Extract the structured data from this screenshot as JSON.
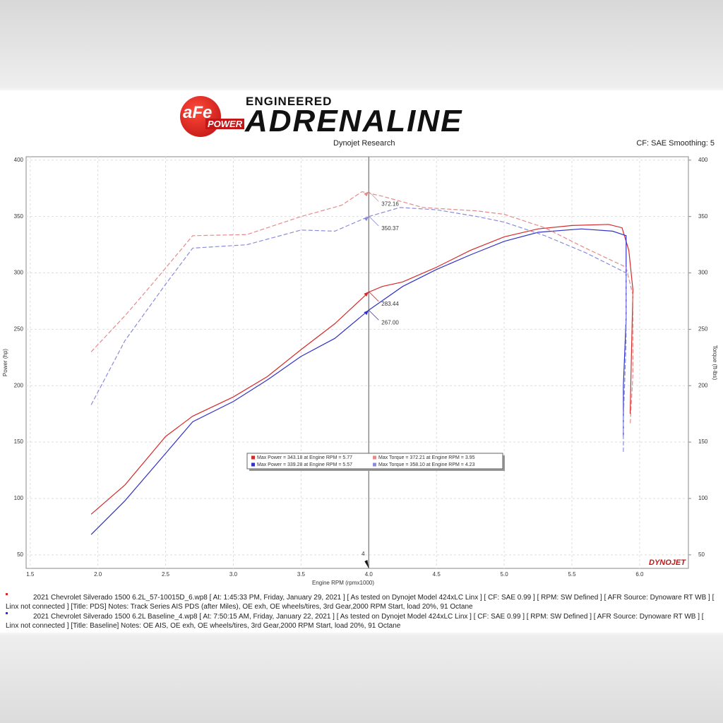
{
  "header": {
    "brand": "aFe",
    "brand_sub": "POWER",
    "line1": "ENGINEERED",
    "line2": "ADRENALINE",
    "left": "Dynojet Research",
    "right": "CF: SAE Smoothing: 5"
  },
  "chart_data": {
    "type": "line",
    "xlabel": "Engine RPM (rpmx1000)",
    "ylabel": "Power (hp)",
    "y2label": "Torque (ft-lbs)",
    "xlim": [
      1.47,
      6.36
    ],
    "xticks": [
      1.5,
      {
        "value": 2,
        "label": "2.0"
      },
      2.5,
      {
        "value": 3,
        "label": "3.0"
      },
      3.5,
      {
        "value": 4,
        "label": "4.0"
      },
      4.5,
      {
        "value": 5,
        "label": "5.0"
      },
      5.5,
      {
        "value": 6,
        "label": "6.0"
      }
    ],
    "ylim": [
      38,
      403
    ],
    "yticks": [
      50,
      100,
      150,
      200,
      250,
      300,
      350,
      400
    ],
    "y2lim": [
      38,
      403
    ],
    "y2ticks": [
      50,
      100,
      150,
      200,
      250,
      300,
      350,
      400
    ],
    "grid": true,
    "series": [
      {
        "color": "#d42a2a",
        "dashed": false,
        "x": [
          1.95,
          2.2,
          2.5,
          2.7,
          3.0,
          3.25,
          3.5,
          3.75,
          4.0,
          4.1,
          4.25,
          4.5,
          4.75,
          5.0,
          5.25,
          5.5,
          5.77,
          5.87,
          5.92,
          5.95,
          5.94,
          5.93
        ],
        "values": [
          86,
          112,
          155,
          173,
          190,
          208,
          232,
          255,
          283,
          288,
          292,
          305,
          320,
          332,
          339,
          342,
          343,
          340,
          320,
          285,
          230,
          175
        ]
      },
      {
        "color": "#3232c8",
        "dashed": false,
        "x": [
          1.95,
          2.2,
          2.5,
          2.7,
          3.0,
          3.25,
          3.5,
          3.75,
          4.0,
          4.25,
          4.5,
          4.75,
          5.0,
          5.25,
          5.57,
          5.8,
          5.9,
          5.9,
          5.88,
          5.88
        ],
        "values": [
          68,
          98,
          140,
          168,
          186,
          205,
          226,
          242,
          267,
          288,
          303,
          316,
          328,
          336,
          339,
          337,
          333,
          260,
          200,
          155
        ]
      },
      {
        "color": "#e68a8a",
        "dashed": true,
        "axis": "y2",
        "x": [
          1.95,
          2.2,
          2.4,
          2.7,
          3.1,
          3.5,
          3.8,
          3.95,
          4.1,
          4.4,
          4.8,
          5.0,
          5.3,
          5.6,
          5.9,
          5.95,
          5.95,
          5.93
        ],
        "values": [
          230,
          262,
          290,
          333,
          334,
          350,
          360,
          372,
          368,
          358,
          355,
          352,
          340,
          322,
          305,
          280,
          210,
          165
        ]
      },
      {
        "color": "#8c8cdc",
        "dashed": true,
        "axis": "y2",
        "x": [
          1.95,
          2.2,
          2.5,
          2.7,
          3.1,
          3.5,
          3.75,
          4.0,
          4.23,
          4.5,
          4.8,
          5.0,
          5.3,
          5.6,
          5.9,
          5.9,
          5.88,
          5.88
        ],
        "values": [
          183,
          240,
          290,
          322,
          325,
          338,
          337,
          350,
          358,
          356,
          350,
          345,
          333,
          318,
          300,
          240,
          170,
          140
        ]
      }
    ],
    "legend": [
      {
        "text": "Max Power = 343.18 at Engine RPM = 5.77",
        "color": "#d42a2a"
      },
      {
        "text": "Max Torque = 372.21 at Engine RPM = 3.95",
        "color": "#e68a8a"
      },
      {
        "text": "Max Power = 339.28 at Engine RPM = 5.57",
        "color": "#3232c8"
      },
      {
        "text": "Max Torque = 358.10 at Engine RPM = 4.23",
        "color": "#8c8cdc"
      }
    ],
    "cursor_x": 4,
    "annotations": [
      {
        "label": "372.16",
        "x": 4,
        "y": 372.16,
        "color": "#e68a8a"
      },
      {
        "label": "350.37",
        "x": 4,
        "y": 350.37,
        "color": "#8c8cdc"
      },
      {
        "label": "283.44",
        "x": 4,
        "y": 283.44,
        "color": "#d42a2a"
      },
      {
        "label": "267.00",
        "x": 4,
        "y": 267,
        "color": "#3232c8"
      }
    ],
    "badge": "DYNOJET"
  },
  "notes": [
    {
      "color": "#d42a2a",
      "text": "2021 Chevrolet Silverado 1500 6.2L_57-10015D_6.wp8 [ At: 1:45:33 PM, Friday, January 29, 2021 ] [ As tested on Dynojet Model 424xLC Linx ] [ CF: SAE 0.99 ] [ RPM: SW Defined ] [ AFR Source: Dynoware RT WB ] [ Linx not connected ] [Title: PDS]  Notes: Track Series AIS PDS (after Miles), OE exh, OE wheels/tires, 3rd Gear,2000 RPM Start, load 20%, 91 Octane"
    },
    {
      "color": "#3232c8",
      "text": "2021 Chevrolet Silverado 1500 6.2L Baseline_4.wp8 [ At: 7:50:15 AM, Friday, January 22, 2021 ] [ As tested on Dynojet Model 424xLC Linx ] [ CF: SAE 0.99 ] [ RPM: SW Defined ] [ AFR Source: Dynoware RT WB ] [ Linx not connected ] [Title: Baseline]  Notes: OE AIS, OE exh, OE wheels/tires, 3rd Gear,2000 RPM Start, load 20%, 91 Octane"
    }
  ]
}
